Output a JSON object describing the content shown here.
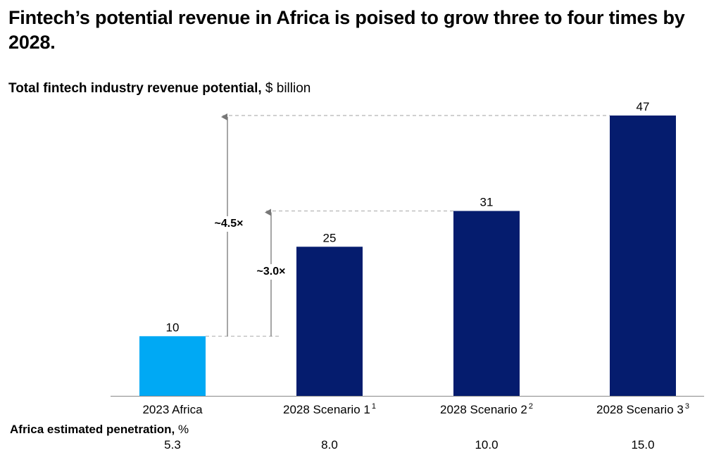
{
  "title": "Fintech’s potential revenue in Africa is poised to grow three to four times by 2028.",
  "subtitle": {
    "bold": "Total fintech industry revenue potential,",
    "normal": "$ billion"
  },
  "chart_data": {
    "type": "bar",
    "title": "Total fintech industry revenue potential, $ billion",
    "categories": [
      "2023 Africa",
      "2028 Scenario 1",
      "2028 Scenario 2",
      "2028 Scenario 3"
    ],
    "superscripts": [
      "",
      "1",
      "2",
      "3"
    ],
    "values": [
      10,
      25,
      31,
      47
    ],
    "data_labels": [
      "10",
      "25",
      "31",
      "47"
    ],
    "colors": [
      "#00a9f4",
      "#051c6e",
      "#051c6e",
      "#051c6e"
    ],
    "ylim": [
      0,
      47
    ],
    "grid": false,
    "annotations": [
      {
        "label": "~4.5×",
        "from_value": 10,
        "to_value": 47
      },
      {
        "label": "~3.0×",
        "from_value": 10,
        "to_value": 31
      }
    ],
    "xlabel": "",
    "ylabel": ""
  },
  "penetration": {
    "label_bold": "Africa estimated penetration,",
    "label_unit": "%",
    "values": [
      "5.3",
      "8.0",
      "10.0",
      "15.0"
    ]
  },
  "colors": {
    "axis": "#888888",
    "guide": "#b5b5b5",
    "arrow": "#777777",
    "text": "#000000"
  }
}
